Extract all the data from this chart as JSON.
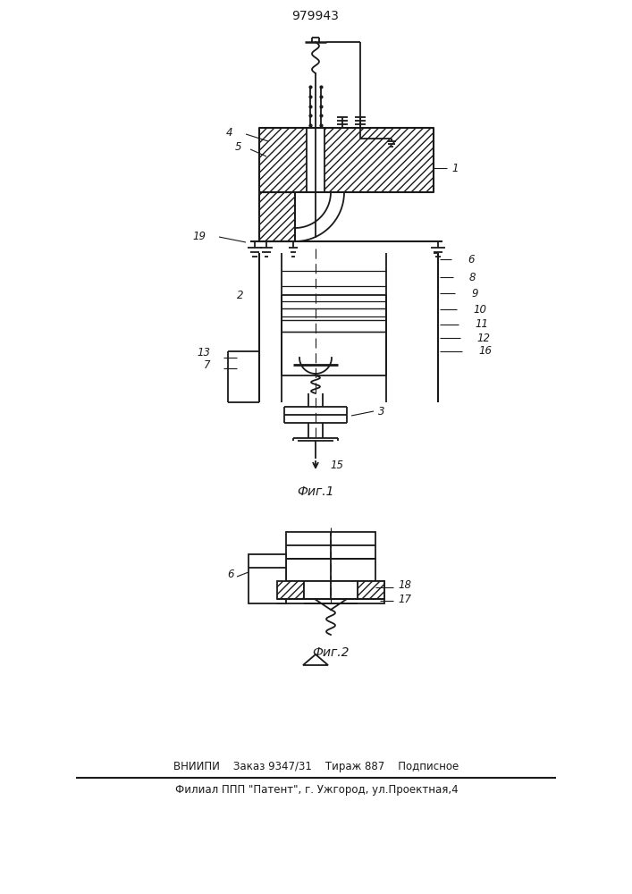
{
  "title": "979943",
  "fig1_label": "Фиг.1",
  "fig2_label": "Фиг.2",
  "footer_line1": "ВНИИПИ    Заказ 9347/31    Тираж 887    Подписное",
  "footer_line2": "Филиал ППП \"Патент\", г. Ужгород, ул.Проектная,4",
  "bg_color": "#ffffff",
  "line_color": "#1a1a1a"
}
